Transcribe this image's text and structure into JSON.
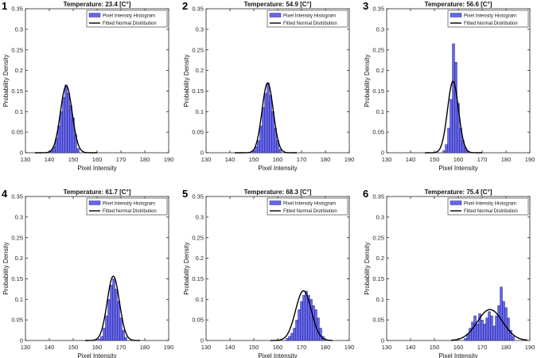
{
  "style": {
    "bar_fill": "#6666ee",
    "bar_edge": "#1a1a66",
    "curve_color": "#000000",
    "axis_color": "#262626"
  },
  "chart_data": [
    {
      "type": "bar",
      "panel_label": "1",
      "title": "Temperature: 23.4 [C°]",
      "xlabel": "Pixel Intensity",
      "ylabel": "Probability Density",
      "xlim": [
        130,
        190
      ],
      "ylim": [
        0,
        0.35
      ],
      "xticks": [
        130,
        140,
        150,
        160,
        170,
        180,
        190
      ],
      "yticks": [
        0,
        0.05,
        0.1,
        0.15,
        0.2,
        0.25,
        0.3,
        0.35
      ],
      "legend": [
        "Pixel Intensity Histogram",
        "Fitted Normal Distribution"
      ],
      "legend_position": "top-right",
      "histogram": {
        "bin_width": 1,
        "bins": [
          141,
          142,
          143,
          144,
          145,
          146,
          147,
          148,
          149,
          150,
          151,
          152
        ],
        "values": [
          0.006,
          0.015,
          0.035,
          0.065,
          0.1,
          0.135,
          0.165,
          0.145,
          0.115,
          0.085,
          0.045,
          0.01
        ]
      },
      "normal_fit": {
        "mean": 147.1,
        "std": 2.45,
        "x_range": [
          134,
          160
        ]
      }
    },
    {
      "type": "bar",
      "panel_label": "2",
      "title": "Temperature: 54.9 [C°]",
      "xlabel": "Pixel Intensity",
      "ylabel": "Probability Density",
      "xlim": [
        130,
        190
      ],
      "ylim": [
        0,
        0.35
      ],
      "xticks": [
        130,
        140,
        150,
        160,
        170,
        180,
        190
      ],
      "yticks": [
        0,
        0.05,
        0.1,
        0.15,
        0.2,
        0.25,
        0.3,
        0.35
      ],
      "legend": [
        "Pixel Intensity Histogram",
        "Fitted Normal Distribution"
      ],
      "legend_position": "top-right",
      "histogram": {
        "bin_width": 1,
        "bins": [
          150,
          151,
          152,
          153,
          154,
          155,
          156,
          157,
          158,
          159,
          160,
          161
        ],
        "values": [
          0.005,
          0.015,
          0.03,
          0.065,
          0.11,
          0.145,
          0.17,
          0.14,
          0.1,
          0.06,
          0.03,
          0.008
        ]
      },
      "normal_fit": {
        "mean": 155.8,
        "std": 2.35,
        "x_range": [
          142,
          168
        ]
      }
    },
    {
      "type": "bar",
      "panel_label": "3",
      "title": "Temperature: 56.6 [C°]",
      "xlabel": "Pixel Intensity",
      "ylabel": "Probability Density",
      "xlim": [
        130,
        190
      ],
      "ylim": [
        0,
        0.35
      ],
      "xticks": [
        130,
        140,
        150,
        160,
        170,
        180,
        190
      ],
      "yticks": [
        0,
        0.05,
        0.1,
        0.15,
        0.2,
        0.25,
        0.3,
        0.35
      ],
      "legend": [
        "Pixel Intensity Histogram",
        "Fitted Normal Distribution"
      ],
      "legend_position": "top-right",
      "histogram": {
        "bin_width": 1,
        "bins": [
          154,
          155,
          156,
          157,
          158,
          159,
          160,
          161,
          162,
          163,
          164
        ],
        "values": [
          0.005,
          0.02,
          0.06,
          0.13,
          0.265,
          0.22,
          0.12,
          0.06,
          0.03,
          0.012,
          0.004
        ]
      },
      "normal_fit": {
        "mean": 157.8,
        "std": 2.3,
        "x_range": [
          146,
          170
        ]
      }
    },
    {
      "type": "bar",
      "panel_label": "4",
      "title": "Temperature: 61.7 [C°]",
      "xlabel": "Pixel Intensity",
      "ylabel": "Probability Density",
      "xlim": [
        130,
        190
      ],
      "ylim": [
        0,
        0.35
      ],
      "xticks": [
        130,
        140,
        150,
        160,
        170,
        180,
        190
      ],
      "yticks": [
        0,
        0.05,
        0.1,
        0.15,
        0.2,
        0.25,
        0.3,
        0.35
      ],
      "legend": [
        "Pixel Intensity Histogram",
        "Fitted Normal Distribution"
      ],
      "legend_position": "top-right",
      "histogram": {
        "bin_width": 1,
        "bins": [
          161,
          162,
          163,
          164,
          165,
          166,
          167,
          168,
          169,
          170,
          171,
          172
        ],
        "values": [
          0.004,
          0.01,
          0.03,
          0.06,
          0.1,
          0.135,
          0.15,
          0.125,
          0.095,
          0.055,
          0.025,
          0.008
        ]
      },
      "normal_fit": {
        "mean": 166.8,
        "std": 2.55,
        "x_range": [
          155,
          178
        ]
      }
    },
    {
      "type": "bar",
      "panel_label": "5",
      "title": "Temperature: 68.3 [C°]",
      "xlabel": "Pixel Intensity",
      "ylabel": "Probability Density",
      "xlim": [
        130,
        190
      ],
      "ylim": [
        0,
        0.35
      ],
      "xticks": [
        130,
        140,
        150,
        160,
        170,
        180,
        190
      ],
      "yticks": [
        0,
        0.05,
        0.1,
        0.15,
        0.2,
        0.25,
        0.3,
        0.35
      ],
      "legend": [
        "Pixel Intensity Histogram",
        "Fitted Normal Distribution"
      ],
      "legend_position": "top-right",
      "histogram": {
        "bin_width": 1,
        "bins": [
          164,
          165,
          166,
          167,
          168,
          169,
          170,
          171,
          172,
          173,
          174,
          175,
          176,
          177,
          178,
          179
        ],
        "values": [
          0.005,
          0.01,
          0.018,
          0.03,
          0.05,
          0.075,
          0.095,
          0.11,
          0.12,
          0.11,
          0.1,
          0.085,
          0.075,
          0.055,
          0.03,
          0.01
        ]
      },
      "normal_fit": {
        "mean": 170.8,
        "std": 3.3,
        "x_range": [
          157,
          183
        ]
      }
    },
    {
      "type": "bar",
      "panel_label": "6",
      "title": "Temperature: 75.4 [C°]",
      "xlabel": "Pixel Intensity",
      "ylabel": "Probability Density",
      "xlim": [
        130,
        190
      ],
      "ylim": [
        0,
        0.35
      ],
      "xticks": [
        130,
        140,
        150,
        160,
        170,
        180,
        190
      ],
      "yticks": [
        0,
        0.05,
        0.1,
        0.15,
        0.2,
        0.25,
        0.3,
        0.35
      ],
      "legend": [
        "Pixel Intensity Histogram",
        "Fitted Normal Distribution"
      ],
      "legend_position": "top-right",
      "histogram": {
        "bin_width": 1,
        "bins": [
          163,
          164,
          165,
          166,
          167,
          168,
          169,
          170,
          171,
          172,
          173,
          174,
          175,
          176,
          177,
          178,
          179,
          180,
          181,
          182,
          183
        ],
        "values": [
          0.005,
          0.015,
          0.03,
          0.045,
          0.06,
          0.04,
          0.065,
          0.05,
          0.04,
          0.055,
          0.07,
          0.06,
          0.035,
          0.06,
          0.085,
          0.13,
          0.095,
          0.08,
          0.055,
          0.025,
          0.01
        ]
      },
      "normal_fit": {
        "mean": 173.3,
        "std": 5.3,
        "x_range": [
          157,
          189
        ]
      }
    }
  ]
}
